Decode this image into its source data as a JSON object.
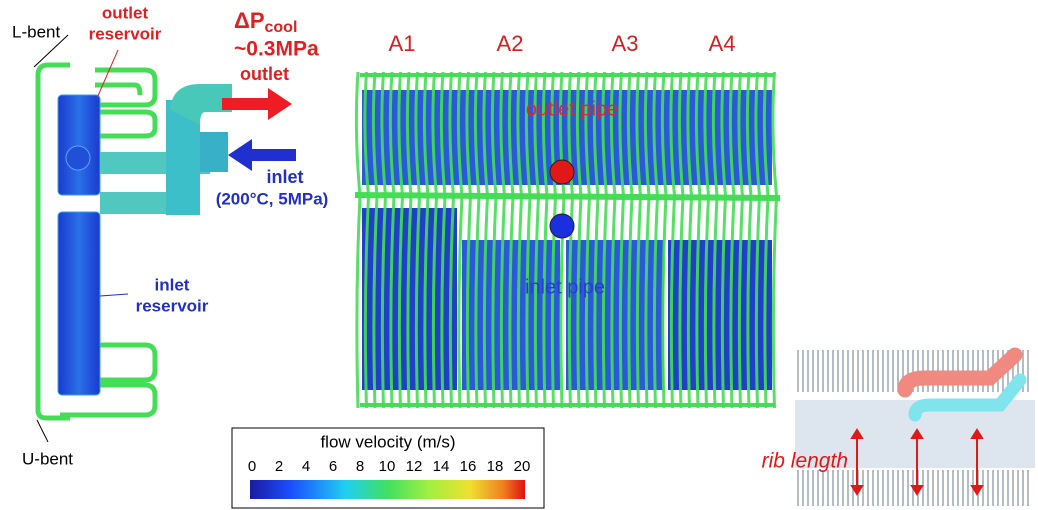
{
  "labels": {
    "l_bent": "L-bent",
    "outlet_reservoir": [
      "outlet",
      "reservoir"
    ],
    "pressure_drop": {
      "symbol": "ΔP",
      "subscript": "cool",
      "value": "~0.3MPa"
    },
    "outlet": "outlet",
    "inlet": "inlet",
    "inlet_conditions": "(200°C, 5MPa)",
    "inlet_reservoir": [
      "inlet",
      "reservoir"
    ],
    "u_bent": "U-bent",
    "areas": [
      "A1",
      "A2",
      "A3",
      "A4"
    ],
    "outlet_pipe": "outlet pipe",
    "inlet_pipe": "inlet pipe",
    "rib_length": "rib length"
  },
  "colorbar": {
    "title": "flow velocity (m/s)",
    "ticks": [
      0,
      2,
      4,
      6,
      8,
      10,
      12,
      14,
      16,
      18,
      20
    ]
  }
}
